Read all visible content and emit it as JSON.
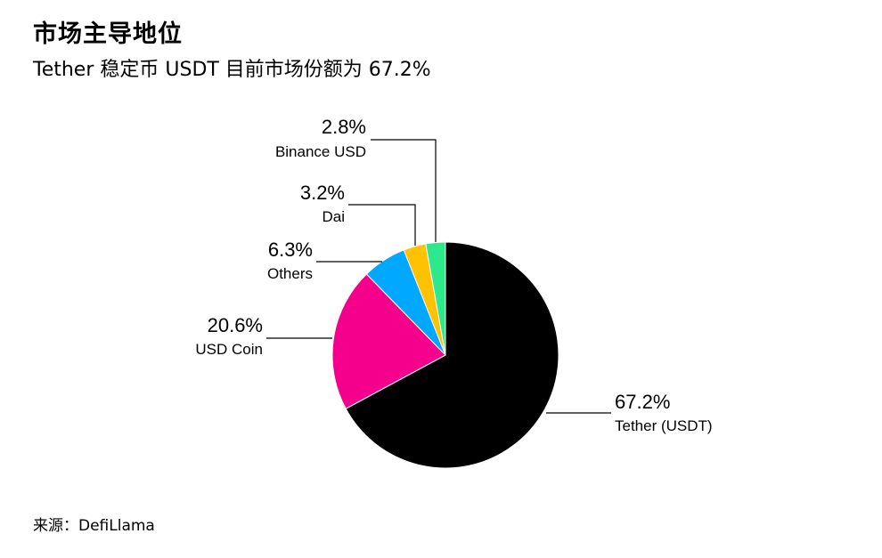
{
  "header": {
    "title": "市场主导地位",
    "subtitle": "Tether 稳定币 USDT 目前市场份额为 67.2%"
  },
  "footer": {
    "source": "来源：DefiLlama"
  },
  "chart_data": {
    "type": "pie",
    "start_angle_deg": 0,
    "direction": "clockwise",
    "slices": [
      {
        "label": "Tether (USDT)",
        "value": 67.2,
        "display": "67.2%",
        "color": "#000000",
        "label_side": "right"
      },
      {
        "label": "USD Coin",
        "value": 20.6,
        "display": "20.6%",
        "color": "#f5008c",
        "label_side": "left"
      },
      {
        "label": "Others",
        "value": 6.3,
        "display": "6.3%",
        "color": "#00a8ff",
        "label_side": "left"
      },
      {
        "label": "Dai",
        "value": 3.2,
        "display": "3.2%",
        "color": "#ffc200",
        "label_side": "left"
      },
      {
        "label": "Binance USD",
        "value": 2.8,
        "display": "2.8%",
        "color": "#2ee88c",
        "label_side": "left"
      }
    ],
    "legend": "none"
  }
}
